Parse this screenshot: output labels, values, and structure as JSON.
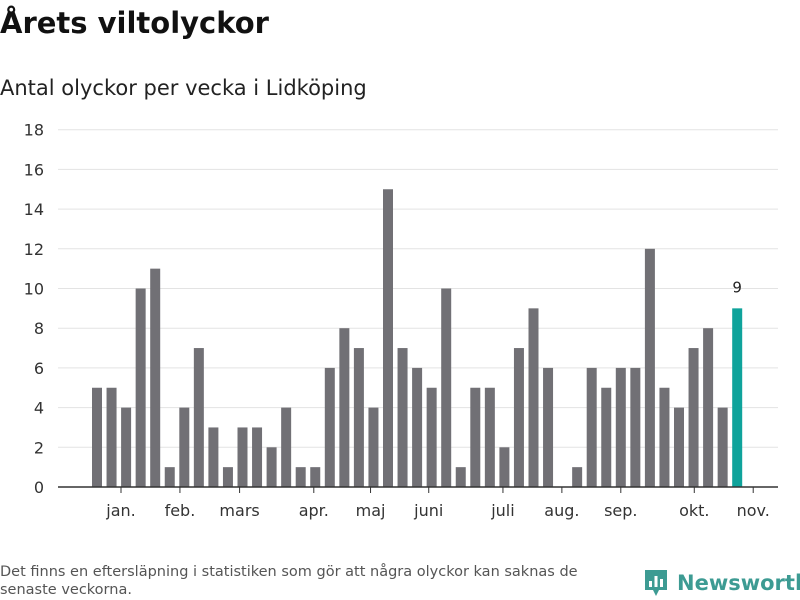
{
  "header": {
    "title": "Årets viltolyckor",
    "subtitle": "Antal olyckor per vecka i Lidköping"
  },
  "footer": {
    "note": "Det finns en eftersläpning i statistiken som gör att några olyckor kan saknas de senaste veckorna.",
    "brand": "Newsworthy"
  },
  "colors": {
    "bar": "#717075",
    "highlight": "#0fa39b",
    "grid": "#e3e3e3",
    "axis": "#333333",
    "brand": "#3d9b93"
  },
  "chart_data": {
    "type": "bar",
    "title": "Årets viltolyckor",
    "subtitle": "Antal olyckor per vecka i Lidköping",
    "xlabel": "",
    "ylabel": "",
    "ylim": [
      0,
      18
    ],
    "yticks": [
      0,
      2,
      4,
      6,
      8,
      10,
      12,
      14,
      16,
      18
    ],
    "grid": true,
    "x": [
      2,
      3,
      4,
      5,
      6,
      7,
      8,
      9,
      10,
      11,
      12,
      13,
      14,
      15,
      16,
      17,
      18,
      19,
      20,
      21,
      22,
      23,
      24,
      25,
      26,
      27,
      28,
      29,
      30,
      31,
      32,
      33,
      34,
      35,
      36,
      37,
      38,
      39,
      40,
      41,
      42,
      43,
      44,
      45,
      46
    ],
    "values": [
      5,
      5,
      4,
      10,
      11,
      1,
      4,
      7,
      3,
      1,
      3,
      3,
      2,
      4,
      1,
      1,
      6,
      8,
      7,
      4,
      15,
      7,
      6,
      5,
      10,
      1,
      5,
      5,
      2,
      7,
      9,
      6,
      0,
      1,
      6,
      5,
      6,
      6,
      12,
      5,
      4,
      7,
      8,
      4,
      9
    ],
    "highlight_index": 44,
    "highlight_label": "9",
    "month_labels": [
      {
        "label": "jan.",
        "x": 1.65
      },
      {
        "label": "feb.",
        "x": 5.7
      },
      {
        "label": "mars",
        "x": 9.8
      },
      {
        "label": "apr.",
        "x": 14.9
      },
      {
        "label": "maj",
        "x": 18.8
      },
      {
        "label": "juni",
        "x": 22.8
      },
      {
        "label": "juli",
        "x": 27.9
      },
      {
        "label": "aug.",
        "x": 31.95
      },
      {
        "label": "sep.",
        "x": 36.0
      },
      {
        "label": "okt.",
        "x": 41.05
      },
      {
        "label": "nov.",
        "x": 45.1
      }
    ]
  }
}
